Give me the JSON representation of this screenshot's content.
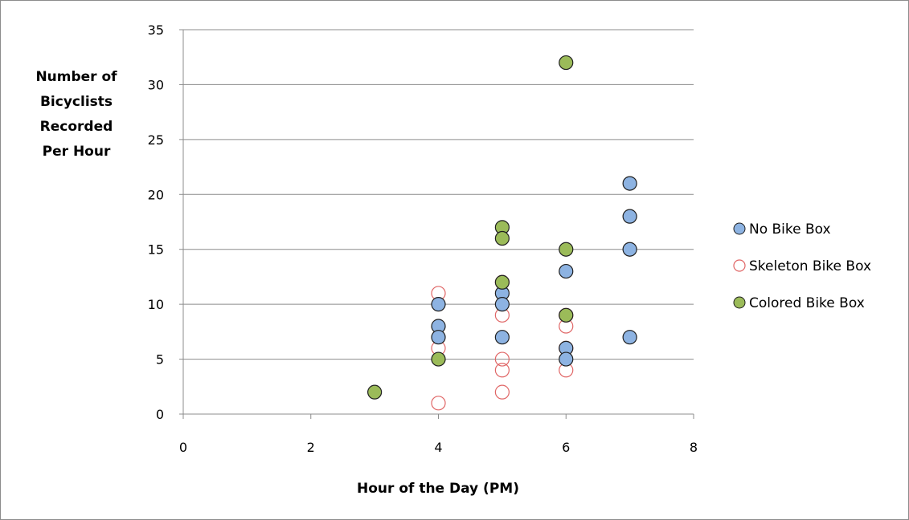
{
  "chart_data": {
    "type": "scatter",
    "title": "",
    "xlabel": "Hour of the Day (PM)",
    "ylabel_lines": [
      "Number of",
      "Bicyclists",
      "Recorded",
      "Per Hour"
    ],
    "xlim": [
      0,
      8
    ],
    "ylim": [
      0,
      35
    ],
    "x_ticks": [
      0,
      2,
      4,
      6,
      8
    ],
    "y_ticks": [
      0,
      5,
      10,
      15,
      20,
      25,
      30,
      35
    ],
    "grid": "horizontal",
    "legend_position": "right",
    "series": [
      {
        "name": "No Bike Box",
        "marker": "filled-circle",
        "fill": "#8db3e2",
        "stroke": "#1f1f1f",
        "points": [
          [
            4,
            10
          ],
          [
            4,
            8
          ],
          [
            4,
            7
          ],
          [
            5,
            11
          ],
          [
            5,
            10
          ],
          [
            5,
            7
          ],
          [
            6,
            13
          ],
          [
            6,
            6
          ],
          [
            6,
            5
          ],
          [
            7,
            21
          ],
          [
            7,
            18
          ],
          [
            7,
            15
          ],
          [
            7,
            7
          ]
        ]
      },
      {
        "name": "Skeleton Bike Box",
        "marker": "open-circle",
        "fill": "none",
        "stroke": "#e06666",
        "points": [
          [
            4,
            11
          ],
          [
            4,
            6
          ],
          [
            4,
            1
          ],
          [
            5,
            12
          ],
          [
            5,
            9
          ],
          [
            5,
            5
          ],
          [
            5,
            4
          ],
          [
            5,
            2
          ],
          [
            6,
            9
          ],
          [
            6,
            8
          ],
          [
            6,
            6
          ],
          [
            6,
            4
          ]
        ]
      },
      {
        "name": "Colored Bike Box",
        "marker": "filled-circle",
        "fill": "#9bbb59",
        "stroke": "#1f1f1f",
        "points": [
          [
            3,
            2
          ],
          [
            4,
            5
          ],
          [
            5,
            17
          ],
          [
            5,
            16
          ],
          [
            5,
            12
          ],
          [
            6,
            32
          ],
          [
            6,
            15
          ],
          [
            6,
            9
          ]
        ]
      }
    ]
  }
}
